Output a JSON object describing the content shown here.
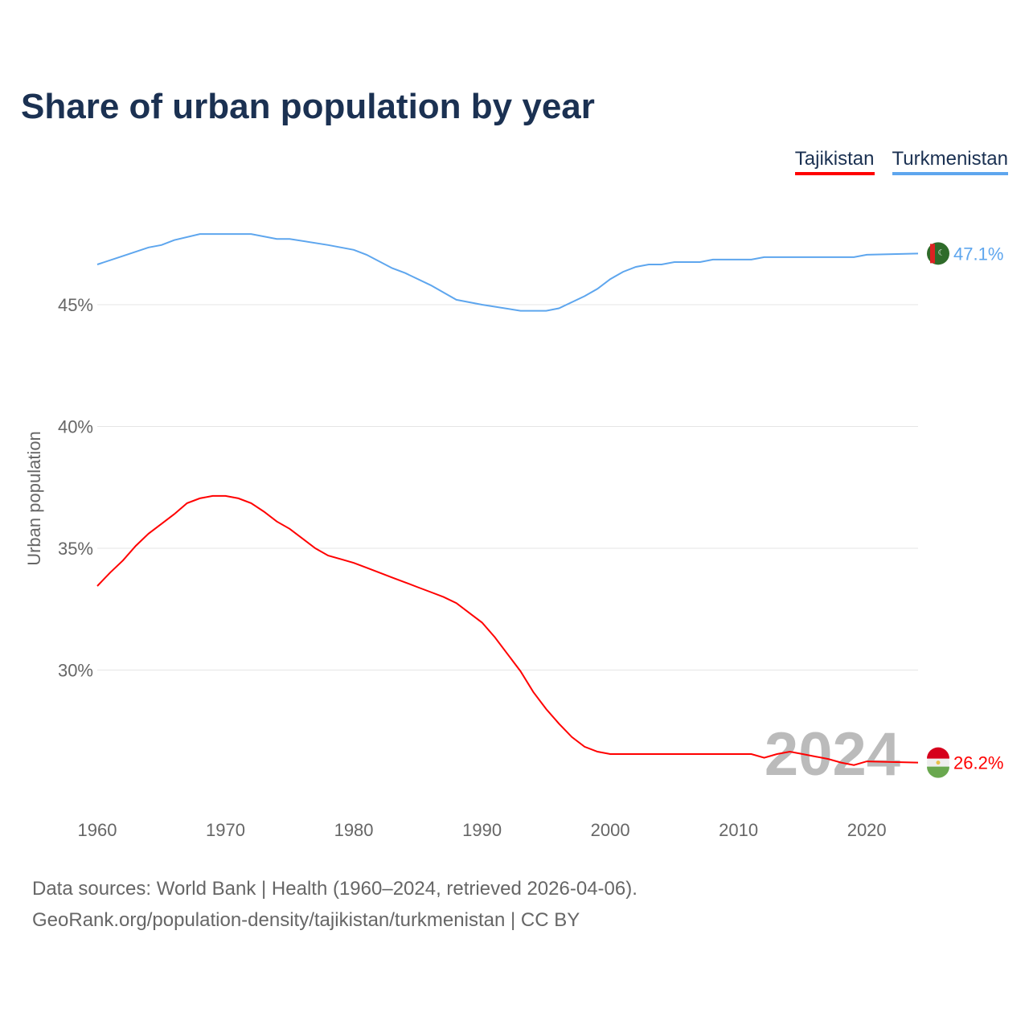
{
  "title": "Share of urban population by year",
  "legend": [
    {
      "label": "Tajikistan",
      "color": "#ff0000"
    },
    {
      "label": "Turkmenistan",
      "color": "#5ea6ee"
    }
  ],
  "footer": {
    "line1": "Data sources: World Bank | Health (1960–2024, retrieved 2026-04-06).",
    "line2": "GeoRank.org/population-density/tajikistan/turkmenistan | CC BY"
  },
  "chart_data": {
    "type": "line",
    "title": "Share of urban population by year",
    "xlabel": "",
    "ylabel": "Urban population",
    "xlim": [
      1960,
      2024
    ],
    "ylim": [
      25,
      48.5
    ],
    "x_ticks": [
      1960,
      1970,
      1980,
      1990,
      2000,
      2010,
      2020
    ],
    "y_ticks": [
      30,
      35,
      40,
      45
    ],
    "y_tick_labels": [
      "30%",
      "35%",
      "40%",
      "45%"
    ],
    "x_tick_labels": [
      "1960",
      "1970",
      "1980",
      "1990",
      "2000",
      "2010",
      "2020"
    ],
    "year_label": "2024",
    "grid": true,
    "legend_position": "top-right",
    "series": [
      {
        "name": "Tajikistan",
        "color": "#ff0000",
        "end_label": "26.2%",
        "flag": "tajikistan-flag",
        "points": [
          [
            1960,
            33.45
          ],
          [
            1961,
            34.0
          ],
          [
            1962,
            34.5
          ],
          [
            1963,
            35.1
          ],
          [
            1964,
            35.6
          ],
          [
            1965,
            36.0
          ],
          [
            1966,
            36.4
          ],
          [
            1967,
            36.85
          ],
          [
            1968,
            37.05
          ],
          [
            1969,
            37.15
          ],
          [
            1970,
            37.15
          ],
          [
            1971,
            37.05
          ],
          [
            1972,
            36.85
          ],
          [
            1973,
            36.5
          ],
          [
            1974,
            36.1
          ],
          [
            1975,
            35.8
          ],
          [
            1976,
            35.4
          ],
          [
            1977,
            35.0
          ],
          [
            1978,
            34.7
          ],
          [
            1979,
            34.55
          ],
          [
            1980,
            34.4
          ],
          [
            1981,
            34.2
          ],
          [
            1982,
            34.0
          ],
          [
            1983,
            33.8
          ],
          [
            1984,
            33.6
          ],
          [
            1985,
            33.4
          ],
          [
            1986,
            33.2
          ],
          [
            1987,
            33.0
          ],
          [
            1988,
            32.75
          ],
          [
            1989,
            32.35
          ],
          [
            1990,
            31.95
          ],
          [
            1991,
            31.35
          ],
          [
            1992,
            30.65
          ],
          [
            1993,
            29.95
          ],
          [
            1994,
            29.1
          ],
          [
            1995,
            28.4
          ],
          [
            1996,
            27.8
          ],
          [
            1997,
            27.25
          ],
          [
            1998,
            26.85
          ],
          [
            1999,
            26.65
          ],
          [
            2000,
            26.55
          ],
          [
            2005,
            26.55
          ],
          [
            2011,
            26.55
          ],
          [
            2012,
            26.4
          ],
          [
            2013,
            26.55
          ],
          [
            2014,
            26.65
          ],
          [
            2015,
            26.55
          ],
          [
            2016,
            26.45
          ],
          [
            2017,
            26.35
          ],
          [
            2018,
            26.2
          ],
          [
            2019,
            26.1
          ],
          [
            2020,
            26.25
          ],
          [
            2024,
            26.2
          ]
        ]
      },
      {
        "name": "Turkmenistan",
        "color": "#5ea6ee",
        "end_label": "47.1%",
        "flag": "turkmenistan-flag",
        "points": [
          [
            1960,
            46.65
          ],
          [
            1962,
            47.0
          ],
          [
            1964,
            47.35
          ],
          [
            1965,
            47.45
          ],
          [
            1966,
            47.65
          ],
          [
            1968,
            47.9
          ],
          [
            1970,
            47.9
          ],
          [
            1972,
            47.9
          ],
          [
            1974,
            47.7
          ],
          [
            1975,
            47.7
          ],
          [
            1978,
            47.45
          ],
          [
            1980,
            47.25
          ],
          [
            1981,
            47.05
          ],
          [
            1983,
            46.5
          ],
          [
            1984,
            46.3
          ],
          [
            1986,
            45.8
          ],
          [
            1988,
            45.2
          ],
          [
            1990,
            45.0
          ],
          [
            1993,
            44.75
          ],
          [
            1995,
            44.75
          ],
          [
            1996,
            44.85
          ],
          [
            1998,
            45.35
          ],
          [
            1999,
            45.65
          ],
          [
            2000,
            46.05
          ],
          [
            2001,
            46.35
          ],
          [
            2002,
            46.55
          ],
          [
            2003,
            46.65
          ],
          [
            2004,
            46.65
          ],
          [
            2005,
            46.75
          ],
          [
            2007,
            46.75
          ],
          [
            2008,
            46.85
          ],
          [
            2011,
            46.85
          ],
          [
            2012,
            46.95
          ],
          [
            2019,
            46.95
          ],
          [
            2020,
            47.05
          ],
          [
            2024,
            47.1
          ]
        ]
      }
    ]
  }
}
